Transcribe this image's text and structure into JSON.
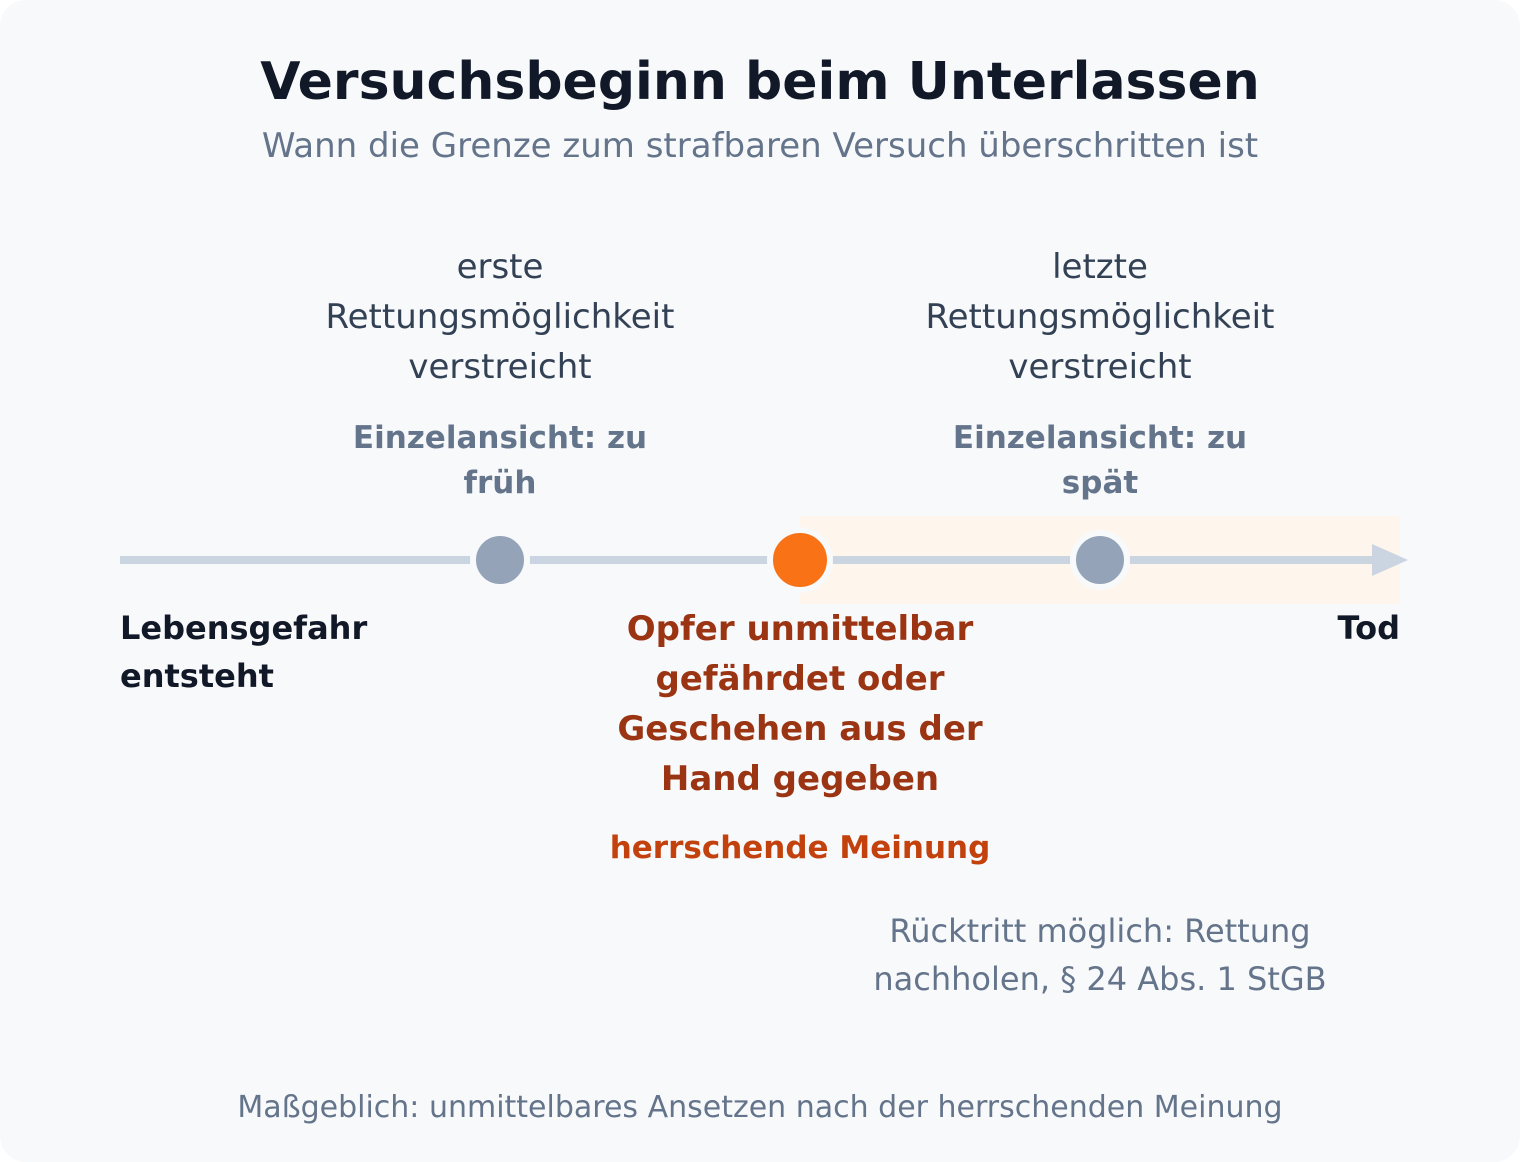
{
  "title": "Versuchsbeginn beim Unterlassen",
  "subtitle": "Wann die Grenze zum strafbaren Versuch überschritten ist",
  "timeline": {
    "start_label": [
      "Lebensgefahr",
      "entsteht"
    ],
    "end_label": "Tod",
    "points": [
      {
        "id": "erste",
        "label": [
          "erste",
          "Rettungsmöglichkeit",
          "verstreicht"
        ],
        "view": [
          "Einzelansicht: zu",
          "früh"
        ],
        "color": "#94a3b8"
      },
      {
        "id": "main",
        "label": [
          "Opfer unmittelbar",
          "gefährdet oder",
          "Geschehen aus der",
          "Hand gegeben"
        ],
        "view": [
          "herrschende Meinung"
        ],
        "color": "#f97316"
      },
      {
        "id": "letzte",
        "label": [
          "letzte",
          "Rettungsmöglichkeit",
          "verstreicht"
        ],
        "view": [
          "Einzelansicht: zu",
          "spät"
        ],
        "color": "#94a3b8"
      }
    ],
    "note": [
      "Rücktritt möglich: Rettung",
      "nachholen, § 24 Abs. 1 StGB"
    ],
    "line_color": "#cbd5e1",
    "highlight_color": "#fef5ec"
  },
  "footer": "Maßgeblich: unmittelbares Ansetzen nach der herrschenden Meinung"
}
